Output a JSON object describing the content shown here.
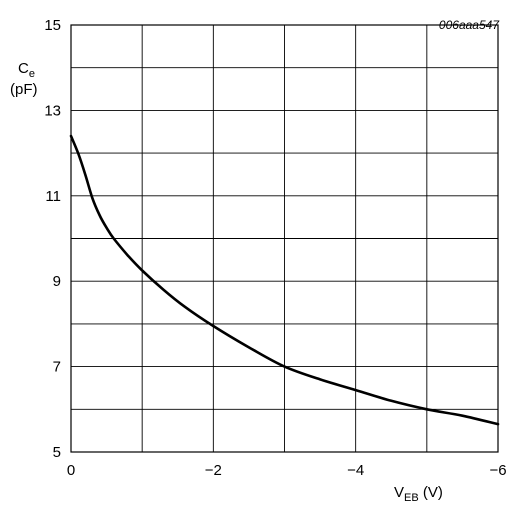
{
  "chart_data": {
    "type": "line",
    "figure_code": "006aaa547",
    "xlabel": {
      "main": "V",
      "sub": "EB",
      "unit": " (V)"
    },
    "ylabel": {
      "main": "C",
      "sub": "e",
      "unit": "(pF)"
    },
    "xlim": [
      0,
      -6
    ],
    "ylim": [
      5,
      15
    ],
    "xtick_values": [
      0,
      -2,
      -4,
      -6
    ],
    "xtick_labels": [
      "0",
      "−2",
      "−4",
      "−6"
    ],
    "ytick_values": [
      5,
      7,
      9,
      11,
      13,
      15
    ],
    "ytick_labels": [
      "5",
      "7",
      "9",
      "11",
      "13",
      "15"
    ],
    "grid_x": [
      0,
      -1,
      -2,
      -3,
      -4,
      -5,
      -6
    ],
    "grid_y": [
      5,
      6,
      7,
      8,
      9,
      10,
      11,
      12,
      13,
      14,
      15
    ],
    "grid": true,
    "series": [
      {
        "x": [
          0,
          -0.1,
          -0.2,
          -0.3,
          -0.4,
          -0.5,
          -0.6,
          -0.8,
          -1.0,
          -1.3,
          -1.6,
          -2.0,
          -2.5,
          -3.0,
          -3.5,
          -4.0,
          -4.5,
          -5.0,
          -5.5,
          -6.0
        ],
        "y": [
          12.4,
          12.0,
          11.5,
          10.95,
          10.55,
          10.25,
          10.0,
          9.6,
          9.25,
          8.8,
          8.4,
          7.95,
          7.45,
          7.0,
          6.7,
          6.45,
          6.2,
          6.0,
          5.85,
          5.65
        ]
      }
    ],
    "colors": {
      "line": "#000000",
      "grid": "#000000",
      "background": "#ffffff"
    }
  }
}
